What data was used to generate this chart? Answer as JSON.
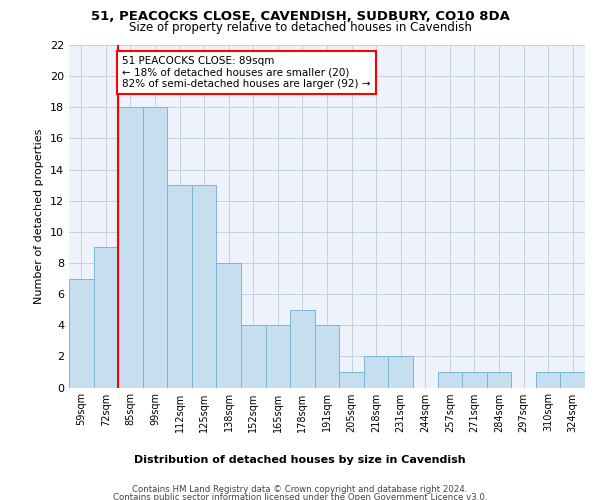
{
  "title": "51, PEACOCKS CLOSE, CAVENDISH, SUDBURY, CO10 8DA",
  "subtitle": "Size of property relative to detached houses in Cavendish",
  "xlabel": "Distribution of detached houses by size in Cavendish",
  "ylabel": "Number of detached properties",
  "bar_labels": [
    "59sqm",
    "72sqm",
    "85sqm",
    "99sqm",
    "112sqm",
    "125sqm",
    "138sqm",
    "152sqm",
    "165sqm",
    "178sqm",
    "191sqm",
    "205sqm",
    "218sqm",
    "231sqm",
    "244sqm",
    "257sqm",
    "271sqm",
    "284sqm",
    "297sqm",
    "310sqm",
    "324sqm"
  ],
  "bar_values": [
    7,
    9,
    18,
    18,
    13,
    13,
    8,
    4,
    4,
    5,
    4,
    1,
    2,
    2,
    0,
    1,
    1,
    1,
    0,
    1,
    1
  ],
  "bar_color": "#c5dff0",
  "bar_edge_color": "#7ab8d4",
  "subject_line_index": 2,
  "subject_line_color": "red",
  "annotation_text": "51 PEACOCKS CLOSE: 89sqm\n← 18% of detached houses are smaller (20)\n82% of semi-detached houses are larger (92) →",
  "annotation_box_color": "white",
  "annotation_box_edge": "red",
  "ylim": [
    0,
    22
  ],
  "yticks": [
    0,
    2,
    4,
    6,
    8,
    10,
    12,
    14,
    16,
    18,
    20,
    22
  ],
  "footer1": "Contains HM Land Registry data © Crown copyright and database right 2024.",
  "footer2": "Contains public sector information licensed under the Open Government Licence v3.0.",
  "bg_color": "#edf2fb",
  "grid_color": "#c5cfe0"
}
